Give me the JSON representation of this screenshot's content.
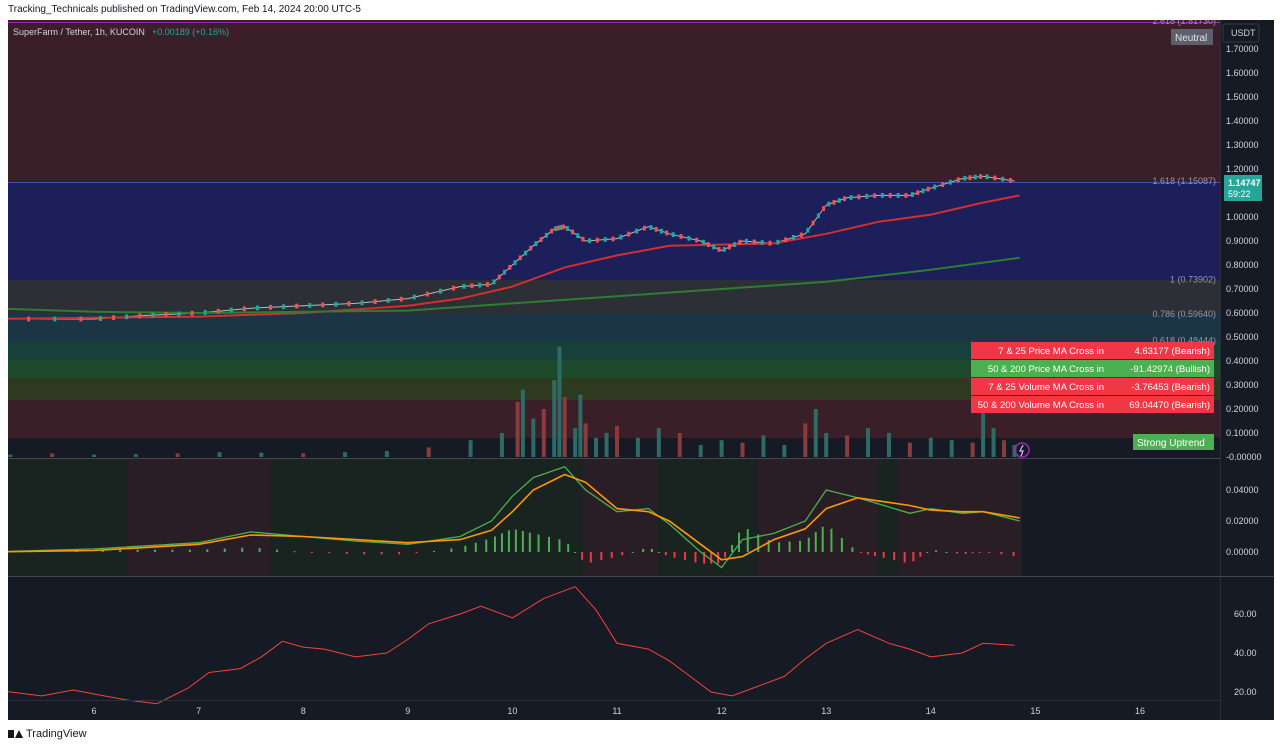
{
  "header": {
    "published": "Tracking_Technicals published on TradingView.com, Feb 14, 2024 20:00 UTC-5",
    "symbol": "SuperFarm / Tether, 1h, KUCOIN",
    "change": "+0.00189 (+0.16%)",
    "currency": "USDT"
  },
  "footer": {
    "brand": "TradingView"
  },
  "badges": {
    "neutral": "Neutral",
    "trend": "Strong Uptrend"
  },
  "price_tag": {
    "price": "1.14747",
    "countdown": "59:22"
  },
  "fib_labels": [
    {
      "text": "2.618 (1.81730)",
      "price": 1.8173
    },
    {
      "text": "1.618 (1.15087)",
      "price": 1.15087
    },
    {
      "text": "1 (0.73902)",
      "price": 0.73902
    },
    {
      "text": "0.786 (0.59640)",
      "price": 0.5964
    },
    {
      "text": "0.618 (0.48444)",
      "price": 0.48444
    }
  ],
  "table": [
    {
      "label": "7 & 25 Price MA Cross in",
      "value": "4.63177 (Bearish)",
      "color": "#f23645"
    },
    {
      "label": "50 & 200 Price MA Cross in",
      "value": "-91.42974 (Bullish)",
      "color": "#4caf50"
    },
    {
      "label": "7 & 25 Volume MA Cross in",
      "value": "-3.76453 (Bearish)",
      "color": "#f23645"
    },
    {
      "label": "50 & 200 Volume MA Cross in",
      "value": "69.04470 (Bearish)",
      "color": "#f23645"
    }
  ],
  "colors": {
    "bull": "#26a69a",
    "bear": "#ef5350",
    "ma_fast": "#d32f2f",
    "ma_slow": "#2e7d32",
    "macd": "#4caf50",
    "signal": "#ff9800",
    "rsi": "#f44336"
  },
  "chart_data": [
    {
      "type": "line",
      "title": "",
      "y_scale": "price",
      "ylim": [
        -0.07,
        1.84
      ],
      "y_ticks": [
        "1.70000",
        "1.60000",
        "1.50000",
        "1.40000",
        "1.30000",
        "1.20000",
        "1.00000",
        "0.90000",
        "0.80000",
        "0.70000",
        "0.60000",
        "0.50000",
        "0.40000",
        "0.30000",
        "0.20000",
        "0.10000",
        "-0.00000"
      ],
      "x_ticks": [
        "6",
        "7",
        "8",
        "9",
        "10",
        "11",
        "12",
        "13",
        "14",
        "15",
        "16"
      ],
      "series": [
        {
          "values_x": [
            5.0,
            6.0,
            6.5,
            7.0,
            7.5,
            8.0,
            8.5,
            9.0,
            9.5,
            9.8,
            10.0,
            10.2,
            10.4,
            10.5,
            10.7,
            11.0,
            11.3,
            11.5,
            11.8,
            12.0,
            12.2,
            12.5,
            12.8,
            13.0,
            13.2,
            13.5,
            13.8,
            14.0,
            14.3,
            14.5,
            14.8
          ],
          "values_y": [
            0.575,
            0.575,
            0.59,
            0.6,
            0.62,
            0.63,
            0.64,
            0.66,
            0.71,
            0.72,
            0.8,
            0.88,
            0.95,
            0.96,
            0.9,
            0.91,
            0.96,
            0.93,
            0.9,
            0.86,
            0.9,
            0.89,
            0.93,
            1.05,
            1.08,
            1.09,
            1.09,
            1.12,
            1.16,
            1.17,
            1.15
          ]
        },
        {
          "values_x": [
            5.0,
            7.0,
            8.0,
            9.0,
            9.5,
            10.0,
            10.5,
            11.0,
            11.5,
            12.0,
            12.5,
            13.0,
            13.5,
            14.0,
            14.5,
            14.85
          ],
          "values_y": [
            0.575,
            0.585,
            0.6,
            0.63,
            0.66,
            0.71,
            0.79,
            0.84,
            0.88,
            0.885,
            0.89,
            0.93,
            0.98,
            1.01,
            1.06,
            1.09
          ]
        },
        {
          "values_x": [
            5.0,
            6.0,
            7.0,
            8.0,
            9.0,
            10.0,
            11.0,
            12.0,
            13.0,
            14.0,
            14.85
          ],
          "values_y": [
            0.62,
            0.605,
            0.6,
            0.605,
            0.61,
            0.64,
            0.67,
            0.7,
            0.73,
            0.78,
            0.83
          ]
        }
      ]
    },
    {
      "type": "bar",
      "title": "",
      "volume_x": [
        5.2,
        5.6,
        6.0,
        6.4,
        6.8,
        7.2,
        7.6,
        8.0,
        8.4,
        8.8,
        9.2,
        9.6,
        9.9,
        10.05,
        10.1,
        10.2,
        10.3,
        10.4,
        10.45,
        10.5,
        10.6,
        10.65,
        10.7,
        10.8,
        10.9,
        11.0,
        11.2,
        11.4,
        11.6,
        11.8,
        12.0,
        12.2,
        12.4,
        12.6,
        12.8,
        12.9,
        13.0,
        13.2,
        13.4,
        13.6,
        13.8,
        14.0,
        14.2,
        14.4,
        14.5,
        14.6,
        14.7,
        14.8
      ],
      "volume_v": [
        0.01,
        0.015,
        0.01,
        0.012,
        0.015,
        0.02,
        0.018,
        0.015,
        0.02,
        0.025,
        0.04,
        0.07,
        0.1,
        0.23,
        0.28,
        0.16,
        0.2,
        0.32,
        0.46,
        0.25,
        0.12,
        0.26,
        0.14,
        0.08,
        0.1,
        0.13,
        0.08,
        0.12,
        0.1,
        0.05,
        0.07,
        0.06,
        0.09,
        0.05,
        0.14,
        0.2,
        0.1,
        0.09,
        0.12,
        0.1,
        0.06,
        0.08,
        0.07,
        0.06,
        0.2,
        0.12,
        0.07,
        0.05
      ]
    },
    {
      "type": "line",
      "title": "",
      "ylim": [
        -0.015,
        0.06
      ],
      "y_ticks": [
        "0.04000",
        "0.02000",
        "0.00000"
      ],
      "series": [
        {
          "values_x": [
            5.0,
            6.0,
            6.5,
            7.0,
            7.5,
            8.0,
            8.5,
            9.0,
            9.5,
            9.8,
            10.0,
            10.2,
            10.5,
            10.7,
            11.0,
            11.3,
            11.5,
            11.8,
            12.0,
            12.2,
            12.5,
            12.8,
            13.0,
            13.3,
            13.5,
            13.8,
            14.0,
            14.3,
            14.5,
            14.85
          ],
          "values_y": [
            0.0,
            0.002,
            0.004,
            0.006,
            0.013,
            0.01,
            0.007,
            0.005,
            0.01,
            0.02,
            0.036,
            0.048,
            0.055,
            0.04,
            0.026,
            0.028,
            0.018,
            0.0,
            -0.01,
            0.008,
            0.012,
            0.02,
            0.04,
            0.035,
            0.031,
            0.025,
            0.028,
            0.025,
            0.026,
            0.02
          ]
        },
        {
          "values_x": [
            5.0,
            6.0,
            6.5,
            7.0,
            7.5,
            8.0,
            8.5,
            9.0,
            9.5,
            9.8,
            10.0,
            10.2,
            10.5,
            10.7,
            11.0,
            11.3,
            11.5,
            11.8,
            12.0,
            12.2,
            12.5,
            12.8,
            13.0,
            13.3,
            13.5,
            13.8,
            14.0,
            14.3,
            14.5,
            14.85
          ],
          "values_y": [
            0.0,
            0.001,
            0.003,
            0.005,
            0.011,
            0.01,
            0.008,
            0.006,
            0.008,
            0.014,
            0.026,
            0.04,
            0.05,
            0.045,
            0.028,
            0.026,
            0.02,
            0.005,
            -0.005,
            -0.003,
            0.008,
            0.015,
            0.028,
            0.035,
            0.033,
            0.03,
            0.027,
            0.026,
            0.026,
            0.022
          ]
        }
      ]
    },
    {
      "type": "line",
      "title": "",
      "ylim": [
        15,
        79
      ],
      "y_ticks": [
        "60.00",
        "40.00",
        "20.00"
      ],
      "series": [
        {
          "values_x": [
            5.0,
            5.2,
            5.5,
            5.8,
            6.0,
            6.3,
            6.6,
            6.9,
            7.1,
            7.4,
            7.6,
            7.8,
            8.0,
            8.2,
            8.5,
            8.8,
            9.0,
            9.2,
            9.5,
            9.7,
            10.0,
            10.3,
            10.6,
            10.8,
            11.0,
            11.3,
            11.5,
            11.7,
            11.9,
            12.1,
            12.3,
            12.6,
            12.8,
            13.0,
            13.3,
            13.6,
            13.8,
            14.0,
            14.3,
            14.5,
            14.8
          ],
          "values_y": [
            22,
            20,
            18,
            21,
            19,
            16,
            14,
            22,
            30,
            32,
            38,
            46,
            43,
            42,
            38,
            40,
            47,
            55,
            60,
            64,
            58,
            68,
            74,
            62,
            45,
            42,
            36,
            28,
            20,
            18,
            22,
            28,
            37,
            45,
            52,
            45,
            42,
            38,
            40,
            45,
            44
          ]
        }
      ]
    }
  ]
}
